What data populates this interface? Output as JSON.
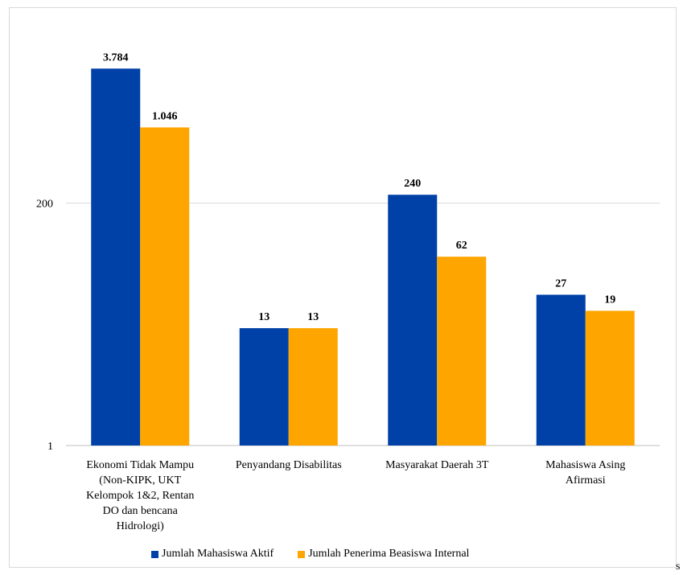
{
  "chart_data": {
    "type": "bar",
    "yscale": "log",
    "ylim": [
      1,
      10000
    ],
    "yticks": [
      1,
      200
    ],
    "ytick_labels": [
      "1",
      "200"
    ],
    "grid": true,
    "legend_position": "bottom",
    "categories": [
      [
        "Ekonomi Tidak Mampu",
        "(Non-KIPK, UKT",
        "Kelompok 1&2, Rentan",
        "DO dan bencana",
        "Hidrologi)"
      ],
      [
        "Penyandang Disabilitas"
      ],
      [
        "Masyarakat Daerah 3T"
      ],
      [
        "Mahasiswa Asing",
        "Afirmasi"
      ]
    ],
    "series": [
      {
        "name": "Jumlah Mahasiswa Aktif",
        "color": "#0041a8",
        "values": [
          3784,
          13,
          240,
          27
        ],
        "labels": [
          "3.784",
          "13",
          "240",
          "27"
        ]
      },
      {
        "name": "Jumlah Penerima Beasiswa Internal",
        "color": "#ffa500",
        "values": [
          1046,
          13,
          62,
          19
        ],
        "labels": [
          "1.046",
          "13",
          "62",
          "19"
        ]
      }
    ]
  },
  "legend": {
    "item1": "Jumlah Mahasiswa Aktif",
    "item2": "Jumlah Penerima Beasiswa Internal"
  },
  "stray_text": "s"
}
